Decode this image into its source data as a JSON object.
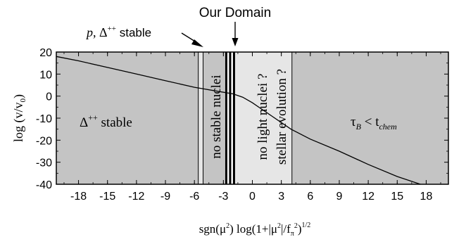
{
  "chart_data": {
    "type": "line",
    "xlabel": {
      "pre": "sgn(μ",
      "sup1": "2",
      "mid": ")  log(1+|μ",
      "sup2": "2",
      "mid2": "|/f",
      "sub": "π",
      "sup3": "2",
      "post": ")",
      "sup4": "1/2"
    },
    "ylabel": {
      "pre": "log (v/v",
      "sub": "0",
      "post": ")"
    },
    "xlim": [
      -20.3,
      20.3
    ],
    "ylim": [
      -40,
      20
    ],
    "xticks": [
      -18,
      -15,
      -12,
      -9,
      -6,
      -3,
      0,
      3,
      6,
      9,
      12,
      15,
      18
    ],
    "xtick_labels": [
      "-18",
      "-15",
      "-12",
      "-9",
      "-6",
      "-3",
      "0",
      "3",
      "6",
      "9",
      "12",
      "15",
      "18"
    ],
    "yticks": [
      -40,
      -30,
      -20,
      -10,
      0,
      10,
      20
    ],
    "ytick_labels": [
      "-40",
      "-30",
      "-20",
      "-10",
      "0",
      "10",
      "20"
    ],
    "grid": false,
    "colors": {
      "dark_region": "#c4c4c4",
      "light_region": "#e6e6e6",
      "line": "#000000",
      "frame": "#000000"
    },
    "regions": [
      {
        "name": "dark-left",
        "x0": -20.3,
        "x1": -5.6,
        "shade": "dark"
      },
      {
        "name": "light-p-stable",
        "x0": -5.6,
        "x1": -5.1,
        "shade": "light"
      },
      {
        "name": "dark-no-stable-nuclei",
        "x0": -5.1,
        "x1": -2.7,
        "shade": "dark"
      },
      {
        "name": "our-domain-band",
        "x0": -2.7,
        "x1": -1.9,
        "shade": "white"
      },
      {
        "name": "light-no-light-nuclei",
        "x0": -1.9,
        "x1": 4.1,
        "shade": "light"
      },
      {
        "name": "dark-right",
        "x0": 4.1,
        "x1": 20.3,
        "shade": "dark"
      }
    ],
    "boundaries": [
      -5.6,
      -5.1,
      -2.7,
      -2.3,
      -1.9,
      4.1
    ],
    "series": [
      {
        "x": [
          -20.3,
          -18,
          -15,
          -12,
          -9,
          -6,
          -4,
          -2,
          -1,
          0,
          1,
          2,
          3,
          4,
          6,
          9,
          12,
          15,
          17.4
        ],
        "y": [
          18,
          16,
          13,
          10,
          7,
          4,
          2.5,
          1,
          -0.5,
          -3,
          -6,
          -9,
          -12,
          -15,
          -19.5,
          -25,
          -31,
          -36.5,
          -40
        ]
      }
    ],
    "annotations": {
      "our_domain": "Our Domain",
      "p_stable_a": "p",
      "p_stable_b": ", Δ",
      "p_stable_sup": "++",
      "p_stable_c": " stable",
      "delta_stable": "Δ",
      "delta_stable_sup": "++",
      "delta_stable_post": " stable",
      "no_stable_nuclei": "no stable nuclei",
      "no_light_nuclei": "no light nuclei ?",
      "stellar_evolution": "stellar evolution ?",
      "tau_a": "τ",
      "tau_sub": "B",
      "tau_b": " < t",
      "tau_sub2": "chem"
    }
  }
}
